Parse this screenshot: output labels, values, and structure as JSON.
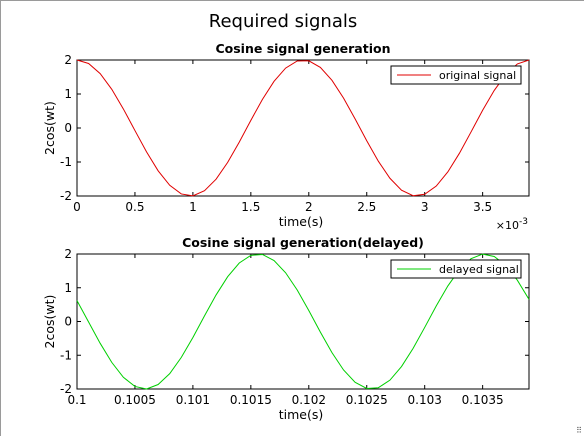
{
  "figure_title": "Required signals",
  "chart_data": [
    {
      "type": "line",
      "title": "Cosine signal generation",
      "xlabel": "time(s)",
      "ylabel": "2cos(wt)",
      "x_exponent_label": "×10",
      "x_exponent_power": "-3",
      "xlim": [
        0,
        0.0039
      ],
      "ylim": [
        -2,
        2
      ],
      "x_scale": 0.001,
      "xticks": [
        0,
        0.5,
        1,
        1.5,
        2,
        2.5,
        3,
        3.5
      ],
      "xtick_labels": [
        "0",
        "0.5",
        "1",
        "1.5",
        "2",
        "2.5",
        "3",
        "3.5"
      ],
      "yticks": [
        -2,
        -1,
        0,
        1,
        2
      ],
      "ytick_labels": [
        "-2",
        "-1",
        "0",
        "1",
        "2"
      ],
      "grid": false,
      "legend_position": "top-right",
      "series": [
        {
          "name": "original signal",
          "color": "#e00000",
          "function": "2*cos(2*pi*512*t)",
          "t_start": 0,
          "t_end": 0.0039,
          "t_step": 0.0001
        }
      ]
    },
    {
      "type": "line",
      "title": "Cosine signal generation(delayed)",
      "xlabel": "time(s)",
      "ylabel": "2cos(wt)",
      "xlim": [
        0.1,
        0.1039
      ],
      "ylim": [
        -2,
        2
      ],
      "x_scale": 1,
      "xticks": [
        0.1,
        0.1005,
        0.101,
        0.1015,
        0.102,
        0.1025,
        0.103,
        0.1035
      ],
      "xtick_labels": [
        "0.1",
        "0.1005",
        "0.101",
        "0.1015",
        "0.102",
        "0.1025",
        "0.103",
        "0.1035"
      ],
      "yticks": [
        -2,
        -1,
        0,
        1,
        2
      ],
      "ytick_labels": [
        "-2",
        "-1",
        "0",
        "1",
        "2"
      ],
      "grid": false,
      "legend_position": "top-right",
      "series": [
        {
          "name": "delayed signal",
          "color": "#00d000",
          "function": "2*cos(2*pi*512*t)",
          "t_start": 0.1,
          "t_end": 0.1039,
          "t_step": 0.0001
        }
      ]
    }
  ]
}
